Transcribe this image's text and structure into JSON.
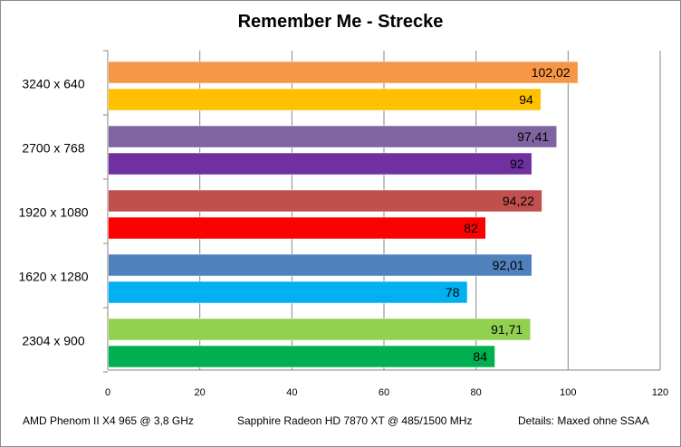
{
  "chart_data": {
    "type": "bar",
    "orientation": "horizontal",
    "title": "Remember Me - Strecke",
    "xlim": [
      0,
      120
    ],
    "xticks": [
      0,
      20,
      40,
      60,
      80,
      100,
      120
    ],
    "grid": "vertical",
    "categories": [
      "3240 x 640",
      "2700 x 768",
      "1920 x 1080",
      "1620 x 1280",
      "2304 x 900"
    ],
    "bars": [
      {
        "category": "3240 x 640",
        "values": [
          102.02,
          94
        ],
        "labels": [
          "102,02",
          "94"
        ],
        "colors": [
          "#f79646",
          "#ffc000"
        ]
      },
      {
        "category": "2700 x 768",
        "values": [
          97.41,
          92
        ],
        "labels": [
          "97,41",
          "92"
        ],
        "colors": [
          "#8064a2",
          "#7030a0"
        ]
      },
      {
        "category": "1920 x 1080",
        "values": [
          94.22,
          82
        ],
        "labels": [
          "94,22",
          "82"
        ],
        "colors": [
          "#c0504d",
          "#ff0000"
        ]
      },
      {
        "category": "1620 x 1280",
        "values": [
          92.01,
          78
        ],
        "labels": [
          "92,01",
          "78"
        ],
        "colors": [
          "#4f81bd",
          "#00b0f0"
        ]
      },
      {
        "category": "2304 x 900",
        "values": [
          91.71,
          84
        ],
        "labels": [
          "91,71",
          "84"
        ],
        "colors": [
          "#92d050",
          "#00b050"
        ]
      }
    ]
  },
  "footer": {
    "cpu": "AMD Phenom II X4 965  @ 3,8 GHz",
    "gpu": "Sapphire Radeon HD 7870  XT @ 485/1500  MHz",
    "details": "Details:  Maxed ohne SSAA"
  }
}
